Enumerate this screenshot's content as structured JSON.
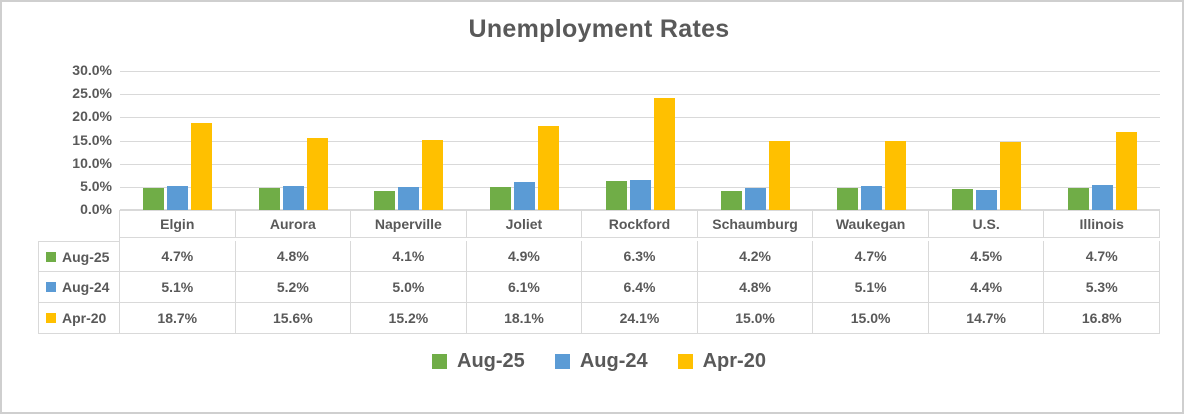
{
  "title": "Unemployment Rates",
  "colors": {
    "text": "#595959",
    "gridline": "#d9d9d9",
    "series_green": "#70AD47",
    "series_blue": "#5B9BD5",
    "series_yellow": "#FFC000"
  },
  "chart_data": {
    "type": "bar",
    "title": "Unemployment Rates",
    "categories": [
      "Elgin",
      "Aurora",
      "Naperville",
      "Joliet",
      "Rockford",
      "Schaumburg",
      "Waukegan",
      "U.S.",
      "Illinois"
    ],
    "series": [
      {
        "name": "Aug-25",
        "color": "#70AD47",
        "values": [
          4.7,
          4.8,
          4.1,
          4.9,
          6.3,
          4.2,
          4.7,
          4.5,
          4.7
        ]
      },
      {
        "name": "Aug-24",
        "color": "#5B9BD5",
        "values": [
          5.1,
          5.2,
          5.0,
          6.1,
          6.4,
          4.8,
          5.1,
          4.4,
          5.3
        ]
      },
      {
        "name": "Apr-20",
        "color": "#FFC000",
        "values": [
          18.7,
          15.6,
          15.2,
          18.1,
          24.1,
          15.0,
          15.0,
          14.7,
          16.8
        ]
      }
    ],
    "xlabel": "",
    "ylabel": "",
    "ylim": [
      0,
      30
    ],
    "ytick_step": 5,
    "ytick_labels": [
      "30.0%",
      "25.0%",
      "20.0%",
      "15.0%",
      "10.0%",
      "5.0%",
      "0.0%"
    ],
    "grid": true,
    "legend_position": "bottom",
    "data_table_shown": true,
    "value_suffix": "%"
  }
}
